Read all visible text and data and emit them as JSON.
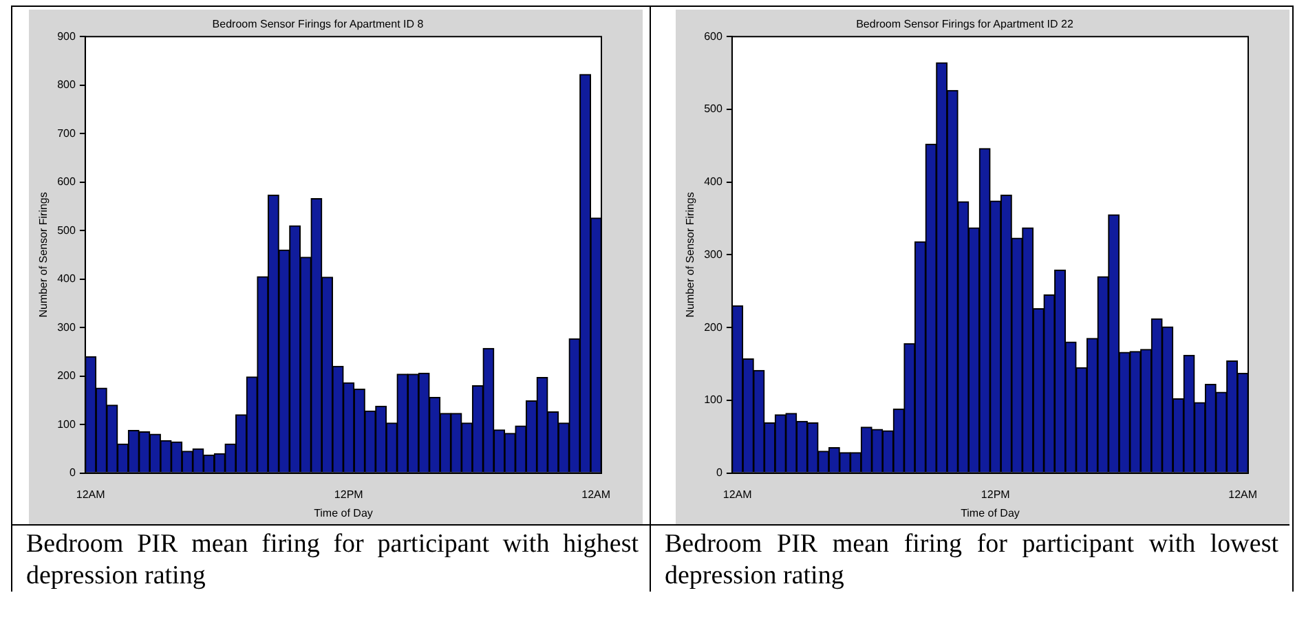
{
  "chart_data": [
    {
      "type": "bar",
      "title": "Bedroom Sensor Firings for Apartment ID 8",
      "xlabel": "Time of Day",
      "ylabel": "Number of Sensor Firings",
      "color": "#101c9c",
      "categories": [
        "12AM",
        null,
        null,
        null,
        null,
        null,
        null,
        null,
        null,
        null,
        null,
        null,
        null,
        null,
        null,
        null,
        null,
        null,
        null,
        null,
        null,
        null,
        null,
        null,
        "12PM",
        null,
        null,
        null,
        null,
        null,
        null,
        null,
        null,
        null,
        null,
        null,
        null,
        null,
        null,
        null,
        null,
        null,
        null,
        null,
        null,
        null,
        null,
        "12AM"
      ],
      "values": [
        240,
        175,
        140,
        60,
        88,
        85,
        80,
        67,
        64,
        45,
        50,
        37,
        40,
        60,
        120,
        198,
        405,
        573,
        460,
        510,
        445,
        566,
        404,
        220,
        186,
        173,
        128,
        138,
        103,
        204,
        204,
        206,
        156,
        123,
        123,
        103,
        180,
        257,
        89,
        82,
        97,
        149,
        197,
        126,
        103,
        277,
        822,
        526
      ],
      "ylim": [
        0,
        900
      ],
      "yticks": [
        0,
        100,
        200,
        300,
        400,
        500,
        600,
        700,
        800,
        900
      ],
      "annotations": [
        "Bedroom PIR mean firing for participant with highest depression rating"
      ]
    },
    {
      "type": "bar",
      "title": "Bedroom Sensor Firings for Apartment ID 22",
      "xlabel": "Time of Day",
      "ylabel": "Number of Sensor Firings",
      "color": "#101c9c",
      "categories": [
        "12AM",
        null,
        null,
        null,
        null,
        null,
        null,
        null,
        null,
        null,
        null,
        null,
        null,
        null,
        null,
        null,
        null,
        null,
        null,
        null,
        null,
        null,
        null,
        null,
        "12PM",
        null,
        null,
        null,
        null,
        null,
        null,
        null,
        null,
        null,
        null,
        null,
        null,
        null,
        null,
        null,
        null,
        null,
        null,
        null,
        null,
        null,
        null,
        "12AM"
      ],
      "values": [
        230,
        157,
        141,
        69,
        80,
        82,
        71,
        69,
        30,
        35,
        28,
        28,
        63,
        60,
        58,
        88,
        178,
        318,
        452,
        564,
        526,
        373,
        337,
        446,
        374,
        382,
        323,
        337,
        226,
        245,
        279,
        180,
        145,
        185,
        270,
        355,
        166,
        167,
        170,
        212,
        201,
        102,
        162,
        97,
        122,
        111,
        154,
        137
      ],
      "ylim": [
        0,
        600
      ],
      "yticks": [
        0,
        100,
        200,
        300,
        400,
        500,
        600
      ],
      "annotations": [
        "Bedroom PIR mean firing for participant with lowest depression rating"
      ]
    }
  ]
}
